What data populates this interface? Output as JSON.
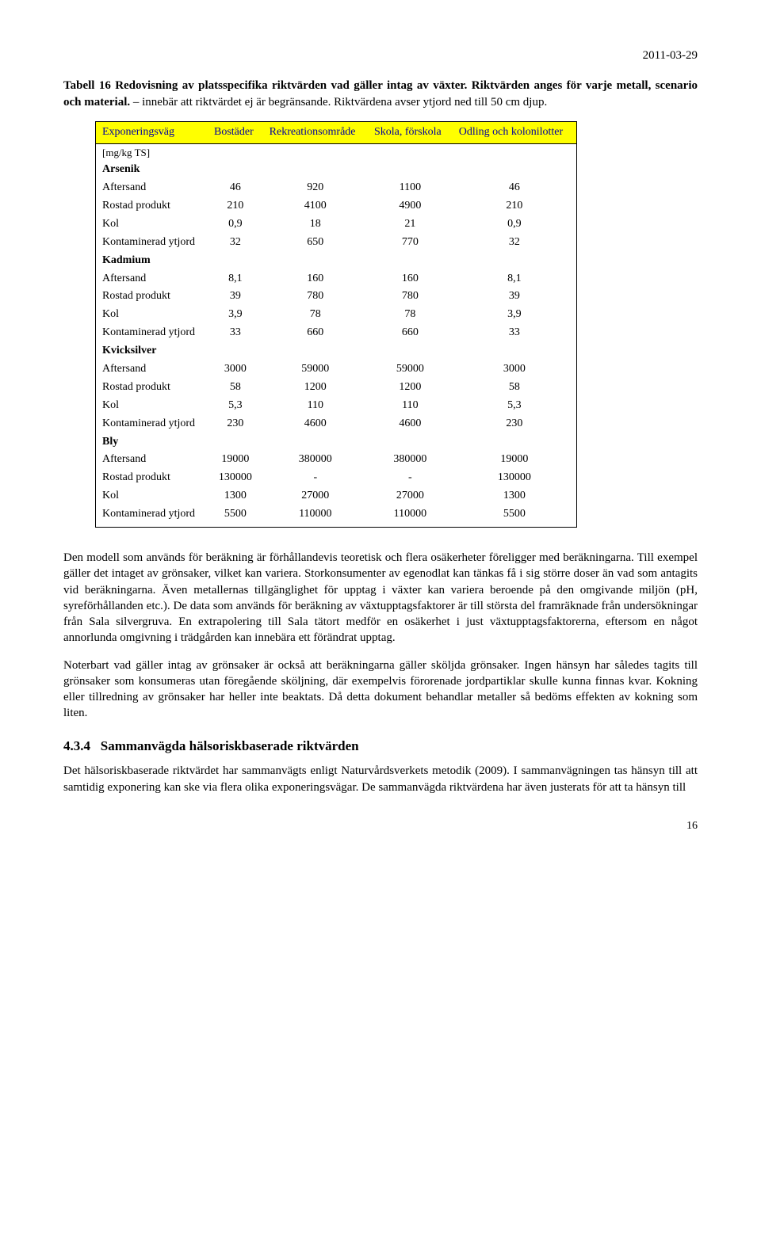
{
  "date": "2011-03-29",
  "caption_parts": {
    "p1": "Tabell 16 Redovisning av platsspecifika riktvärden vad gäller intag av växter. Riktvärden anges för varje metall, scenario och material. ",
    "p2": "– innebär att riktvärdet ej är begränsande. Riktvärdena avser ytjord ned till 50 cm djup."
  },
  "table": {
    "headers": [
      "Exponeringsväg",
      "Bostäder",
      "Rekreationsområde",
      "Skola, förskola",
      "Odling och kolonilotter"
    ],
    "unit_row": "[mg/kg TS]",
    "sections": [
      {
        "title": "Arsenik",
        "rows": [
          [
            "Aftersand",
            "46",
            "920",
            "1100",
            "46"
          ],
          [
            "Rostad produkt",
            "210",
            "4100",
            "4900",
            "210"
          ],
          [
            "Kol",
            "0,9",
            "18",
            "21",
            "0,9"
          ],
          [
            "Kontaminerad ytjord",
            "32",
            "650",
            "770",
            "32"
          ]
        ]
      },
      {
        "title": "Kadmium",
        "rows": [
          [
            "Aftersand",
            "8,1",
            "160",
            "160",
            "8,1"
          ],
          [
            "Rostad produkt",
            "39",
            "780",
            "780",
            "39"
          ],
          [
            "Kol",
            "3,9",
            "78",
            "78",
            "3,9"
          ],
          [
            "Kontaminerad ytjord",
            "33",
            "660",
            "660",
            "33"
          ]
        ]
      },
      {
        "title": "Kvicksilver",
        "rows": [
          [
            "Aftersand",
            "3000",
            "59000",
            "59000",
            "3000"
          ],
          [
            "Rostad produkt",
            "58",
            "1200",
            "1200",
            "58"
          ],
          [
            "Kol",
            "5,3",
            "110",
            "110",
            "5,3"
          ],
          [
            "Kontaminerad ytjord",
            "230",
            "4600",
            "4600",
            "230"
          ]
        ]
      },
      {
        "title": "Bly",
        "rows": [
          [
            "Aftersand",
            "19000",
            "380000",
            "380000",
            "19000"
          ],
          [
            "Rostad produkt",
            "130000",
            "-",
            "-",
            "130000"
          ],
          [
            "Kol",
            "1300",
            "27000",
            "27000",
            "1300"
          ],
          [
            "Kontaminerad ytjord",
            "5500",
            "110000",
            "110000",
            "5500"
          ]
        ]
      }
    ]
  },
  "body_paragraphs": [
    "Den modell som används för beräkning är förhållandevis teoretisk och flera osäkerheter föreligger med beräkningarna. Till exempel gäller det intaget av grönsaker, vilket kan variera. Storkonsumenter av egenodlat kan tänkas få i sig större doser än vad som antagits vid beräkningarna. Även metallernas tillgänglighet för upptag i växter kan variera beroende på den omgivande miljön (pH, syreförhållanden etc.). De data som används för beräkning av växtupptagsfaktorer är till största del framräknade från undersökningar från Sala silvergruva. En extrapolering till Sala tätort medför en osäkerhet i just växtupptagsfaktorerna, eftersom en något annorlunda omgivning i trädgården kan innebära ett förändrat upptag.",
    "Noterbart vad gäller intag av grönsaker är också att beräkningarna gäller sköljda grönsaker. Ingen hänsyn har således tagits till grönsaker som konsumeras utan föregående sköljning, där exempelvis förorenade jordpartiklar skulle kunna finnas kvar. Kokning eller tillredning av grönsaker har heller inte beaktats. Då detta dokument behandlar metaller så bedöms effekten av kokning som liten."
  ],
  "heading": {
    "number": "4.3.4",
    "text": "Sammanvägda hälsoriskbaserade riktvärden"
  },
  "final_para": "Det hälsoriskbaserade riktvärdet har sammanvägts enligt Naturvårdsverkets metodik (2009). I sammanvägningen tas hänsyn till att samtidig exponering kan ske via flera olika exponeringsvägar. De sammanvägda riktvärdena har även justerats för att ta hänsyn till",
  "page_number": "16"
}
